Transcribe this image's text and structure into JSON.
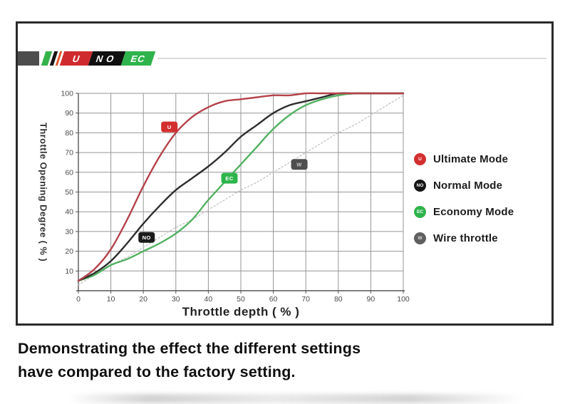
{
  "logo": {
    "segments": [
      {
        "label": "U",
        "color": "#cf2b2e"
      },
      {
        "label": "NO",
        "color": "#101010"
      },
      {
        "label": "EC",
        "color": "#2fb34c"
      }
    ]
  },
  "chart_data": {
    "type": "line",
    "title": "",
    "xlabel": "Throttle depth ( % )",
    "ylabel": "Throttle Opening Degree ( % )",
    "xlim": [
      0,
      100
    ],
    "ylim": [
      0,
      100
    ],
    "grid": true,
    "legend_position": "right-outside",
    "x_ticks": [
      0,
      10,
      20,
      30,
      40,
      50,
      60,
      70,
      80,
      90,
      100
    ],
    "y_ticks": [
      10,
      20,
      30,
      40,
      50,
      60,
      70,
      80,
      90,
      100
    ],
    "x": [
      0,
      5,
      10,
      15,
      20,
      25,
      30,
      35,
      40,
      45,
      50,
      55,
      60,
      65,
      70,
      75,
      80,
      85,
      90,
      95,
      100
    ],
    "series": [
      {
        "name": "Wire throttle",
        "badge": "W",
        "color": "#c6c6c6",
        "dashed": true,
        "badge_color": "#4e4e4e",
        "badge_text_color": "#cccccc",
        "badge_at": {
          "x": 68,
          "y": 64
        },
        "values": [
          3,
          8,
          13,
          17,
          22,
          27,
          32,
          36,
          41,
          46,
          51,
          55,
          60,
          65,
          70,
          75,
          80,
          84,
          89,
          94,
          99
        ]
      },
      {
        "name": "Economy Mode",
        "badge": "EC",
        "color": "#52b160",
        "dashed": false,
        "badge_color": "#2db54c",
        "badge_text_color": "#ffffff",
        "badge_at": {
          "x": 46.5,
          "y": 57
        },
        "values": [
          5,
          8,
          13,
          16,
          20,
          24,
          29,
          36,
          46,
          55,
          64,
          73,
          82,
          89,
          94,
          97,
          99,
          100,
          100,
          100,
          100
        ]
      },
      {
        "name": "Normal Mode",
        "badge": "NO",
        "color": "#2e2e2e",
        "dashed": false,
        "badge_color": "#1b1b1b",
        "badge_text_color": "#ffffff",
        "badge_at": {
          "x": 21,
          "y": 27
        },
        "values": [
          5,
          9,
          15,
          24,
          34,
          43,
          51,
          57,
          63,
          70,
          78,
          84,
          90,
          94,
          96,
          98,
          100,
          100,
          100,
          100,
          100
        ]
      },
      {
        "name": "Ultimate Mode",
        "badge": "U",
        "color": "#b5424a",
        "dashed": false,
        "badge_color": "#d32f2f",
        "badge_text_color": "#ffffff",
        "badge_at": {
          "x": 28,
          "y": 83
        },
        "values": [
          5,
          11,
          21,
          36,
          53,
          68,
          80,
          88,
          93,
          96,
          97,
          98,
          99,
          99,
          100,
          100,
          100,
          100,
          100,
          100,
          100
        ]
      }
    ]
  },
  "legend": {
    "items": [
      {
        "letter": "U",
        "label": "Ultimate Mode",
        "color": "#d32f2f",
        "letter_color": "#ffffff"
      },
      {
        "letter": "NO",
        "label": "Normal Mode",
        "color": "#151515",
        "letter_color": "#ffffff"
      },
      {
        "letter": "EC",
        "label": "Economy Mode",
        "color": "#2fb34c",
        "letter_color": "#ffffff"
      },
      {
        "letter": "W",
        "label": "Wire throttle",
        "color": "#5f5f5f",
        "letter_color": "#dddddd"
      }
    ]
  },
  "caption": {
    "line1": "Demonstrating the effect the different settings",
    "line2": "have compared to the factory setting."
  },
  "colors": {
    "grid": "#969696",
    "axis": "#555555",
    "tick_label": "#4a4a4a",
    "frame_border": "#2a2a2a"
  }
}
